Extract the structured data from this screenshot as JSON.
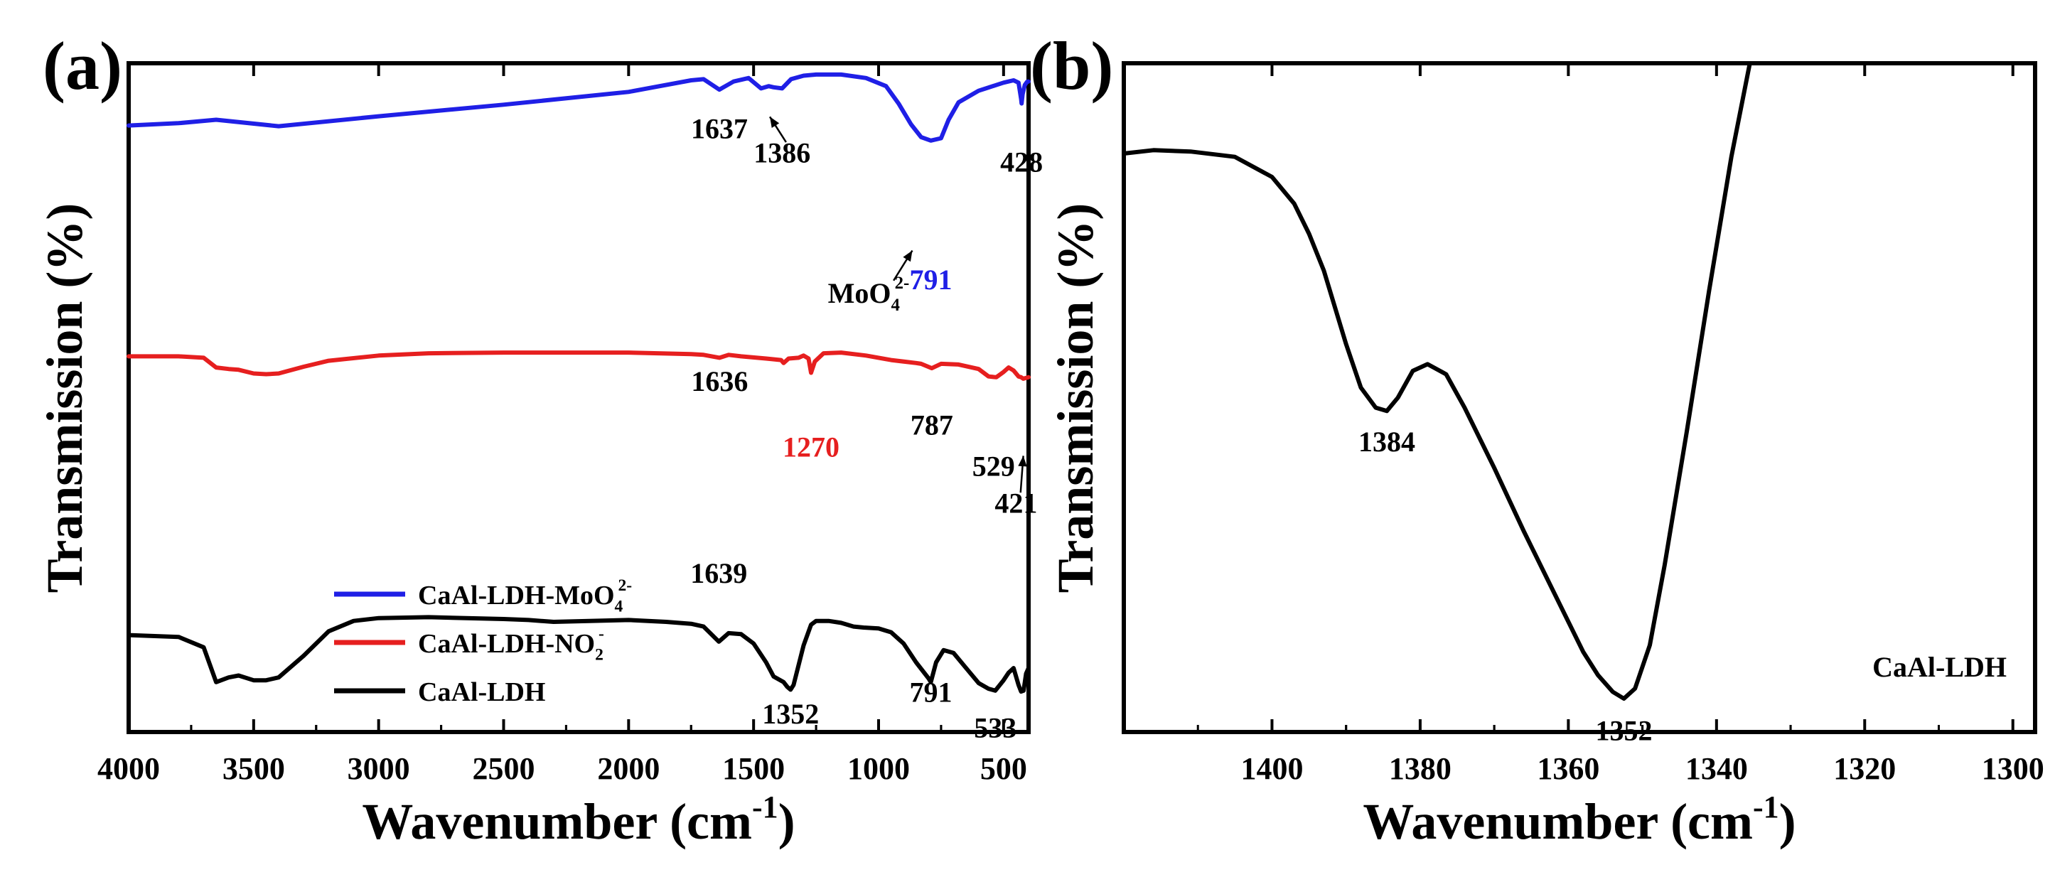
{
  "chart_data": [
    {
      "id": "a",
      "type": "line",
      "panel_label": "(a)",
      "xlabel_main": "Wavenumber (cm",
      "xlabel_sup": "-1",
      "xlabel_end": ")",
      "ylabel": "Transmission (%)",
      "xlim": [
        4000,
        400
      ],
      "x_ticks": [
        4000,
        3500,
        3000,
        2500,
        2000,
        1500,
        1000,
        500
      ],
      "x_tick_labels": [
        "4000",
        "3500",
        "3000",
        "2500",
        "2000",
        "1500",
        "1000",
        "500"
      ],
      "ylim": [
        0,
        100
      ],
      "y_ticks_shown": false,
      "legend": [
        {
          "label_main": "CaAl-LDH-MoO",
          "label_sub": "4",
          "label_sup": "2-",
          "color": "#1f1fe6"
        },
        {
          "label_main": "CaAl-LDH-NO",
          "label_sub": "2",
          "label_sup": "-",
          "color": "#e61f1f"
        },
        {
          "label_main": "CaAl-LDH",
          "label_sub": "",
          "label_sup": "",
          "color": "#000000"
        }
      ],
      "series": [
        {
          "name": "CaAl-LDH-MoO4 2-",
          "color": "#1f1fe6",
          "x": [
            4000,
            3800,
            3650,
            3400,
            3000,
            2500,
            2000,
            1750,
            1700,
            1637,
            1580,
            1520,
            1470,
            1440,
            1420,
            1386,
            1350,
            1300,
            1250,
            1150,
            1050,
            970,
            920,
            870,
            830,
            791,
            750,
            720,
            680,
            600,
            500,
            460,
            440,
            430,
            428,
            424,
            415,
            405,
            400
          ],
          "y": [
            76.5,
            77.5,
            79.0,
            76.2,
            80.5,
            85.5,
            91.0,
            96.0,
            96.5,
            92.0,
            95.5,
            97.0,
            92.5,
            93.5,
            93.0,
            92.5,
            96.5,
            98.0,
            98.5,
            98.5,
            97.0,
            93.5,
            86.0,
            77.0,
            71.5,
            70.0,
            71.0,
            79.0,
            86.5,
            91.5,
            95.0,
            96.0,
            95.0,
            88.0,
            86.0,
            90.0,
            94.0,
            95.5,
            95.5
          ]
        },
        {
          "name": "CaAl-LDH-NO2 -",
          "color": "#e61f1f",
          "x": [
            4000,
            3800,
            3700,
            3650,
            3600,
            3560,
            3500,
            3450,
            3400,
            3300,
            3200,
            3000,
            2800,
            2500,
            2000,
            1750,
            1700,
            1636,
            1600,
            1550,
            1450,
            1390,
            1380,
            1360,
            1320,
            1300,
            1280,
            1270,
            1255,
            1220,
            1150,
            1050,
            950,
            850,
            830,
            787,
            750,
            680,
            600,
            560,
            529,
            500,
            480,
            460,
            440,
            430,
            421,
            410,
            400
          ],
          "y": [
            56.5,
            56.5,
            55.5,
            49.0,
            48.0,
            47.5,
            45.0,
            44.5,
            45.0,
            49.5,
            53.5,
            57.0,
            58.5,
            59.0,
            59.0,
            58.0,
            57.5,
            55.5,
            57.5,
            56.5,
            55.0,
            54.0,
            52.0,
            55.0,
            55.5,
            57.0,
            55.0,
            45.5,
            53.0,
            58.5,
            59.0,
            57.0,
            54.0,
            52.0,
            51.5,
            48.5,
            51.5,
            51.0,
            48.0,
            43.0,
            42.5,
            46.0,
            49.0,
            47.0,
            43.0,
            42.5,
            41.5,
            42.0,
            42.5
          ]
        },
        {
          "name": "CaAl-LDH",
          "color": "#000000",
          "x": [
            4000,
            3800,
            3700,
            3650,
            3600,
            3560,
            3500,
            3450,
            3400,
            3300,
            3200,
            3100,
            3000,
            2800,
            2500,
            2400,
            2300,
            2000,
            1850,
            1750,
            1700,
            1639,
            1600,
            1550,
            1500,
            1450,
            1420,
            1380,
            1365,
            1352,
            1340,
            1300,
            1270,
            1250,
            1200,
            1150,
            1100,
            1060,
            1000,
            950,
            900,
            850,
            800,
            791,
            770,
            740,
            700,
            650,
            600,
            560,
            533,
            500,
            480,
            460,
            440,
            430,
            420,
            410,
            400
          ],
          "y": [
            34.5,
            33.5,
            28.0,
            9.5,
            12.0,
            13.0,
            10.5,
            10.5,
            12.0,
            23.5,
            36.5,
            42.0,
            43.5,
            44.0,
            43.0,
            42.5,
            41.5,
            42.5,
            41.5,
            40.5,
            39.0,
            31.0,
            35.5,
            35.0,
            30.0,
            20.0,
            12.5,
            9.5,
            7.0,
            5.5,
            8.0,
            29.0,
            40.0,
            42.0,
            42.0,
            41.0,
            39.0,
            38.5,
            38.0,
            36.0,
            30.0,
            20.0,
            11.5,
            9.5,
            20.0,
            26.5,
            25.0,
            17.0,
            9.0,
            6.0,
            5.0,
            10.5,
            14.5,
            17.0,
            8.0,
            4.5,
            5.0,
            14.0,
            17.0
          ]
        }
      ],
      "annotations": [
        {
          "text": "1637",
          "x": 1637,
          "y": 88.8,
          "color": "#000000"
        },
        {
          "text": "1386",
          "x": 1386,
          "y": 85.2,
          "color": "#000000"
        },
        {
          "text": "428",
          "x": 428,
          "y": 83.8,
          "color": "#000000"
        },
        {
          "text": "791",
          "x": 791,
          "y": 66.2,
          "color": "#1f1fe6"
        },
        {
          "text": "MoO",
          "sub": "4",
          "sup": "2-",
          "x": 1040,
          "y": 64.2,
          "color": "#000000"
        },
        {
          "text": "1636",
          "x": 1636,
          "y": 51.0,
          "color": "#000000"
        },
        {
          "text": "1270",
          "x": 1270,
          "y": 41.2,
          "color": "#e61f1f"
        },
        {
          "text": "787",
          "x": 787,
          "y": 44.5,
          "color": "#000000"
        },
        {
          "text": "529",
          "x": 540,
          "y": 38.3,
          "color": "#000000"
        },
        {
          "text": "421",
          "x": 450,
          "y": 32.8,
          "color": "#000000"
        },
        {
          "text": "1639",
          "x": 1639,
          "y": 22.3,
          "color": "#000000"
        },
        {
          "text": "1352",
          "x": 1352,
          "y": 1.3,
          "color": "#000000"
        },
        {
          "text": "791",
          "x": 791,
          "y": 4.5,
          "color": "#000000"
        },
        {
          "text": "533",
          "x": 533,
          "y": -0.8,
          "color": "#000000"
        }
      ],
      "arrows": [
        {
          "from": [
            1370,
            88.2
          ],
          "to": [
            1435,
            92.0
          ]
        },
        {
          "from": [
            940,
            67.5
          ],
          "to": [
            865,
            72.0
          ]
        },
        {
          "from": [
            432,
            35.8
          ],
          "to": [
            421,
            41.3
          ]
        }
      ]
    },
    {
      "id": "b",
      "type": "line",
      "panel_label": "(b)",
      "xlabel_main": "Wavenumber (cm",
      "xlabel_sup": "-1",
      "xlabel_end": ")",
      "ylabel": "Transmission (%)",
      "xlim": [
        1420,
        1297
      ],
      "x_ticks": [
        1400,
        1380,
        1360,
        1340,
        1320,
        1300
      ],
      "x_tick_labels": [
        "1400",
        "1380",
        "1360",
        "1340",
        "1320",
        "1300"
      ],
      "ylim": [
        0,
        100
      ],
      "y_ticks_shown": false,
      "inside_label": "CaAl-LDH",
      "series": [
        {
          "name": "CaAl-LDH",
          "color": "#000000",
          "x": [
            1420,
            1416,
            1411,
            1405,
            1400,
            1397,
            1395,
            1393,
            1390,
            1388,
            1386,
            1384.5,
            1383,
            1381,
            1379,
            1376.5,
            1374,
            1370,
            1366,
            1362,
            1358,
            1356,
            1354,
            1352.5,
            1351,
            1349,
            1347,
            1344,
            1341,
            1338,
            1335.5
          ],
          "y": [
            86.5,
            87.0,
            86.8,
            86.0,
            83.0,
            79.0,
            74.5,
            69.0,
            58.0,
            51.5,
            48.5,
            48.0,
            50.0,
            54.0,
            55.0,
            53.5,
            48.5,
            39.5,
            30.0,
            21.0,
            12.0,
            8.5,
            6.0,
            5.0,
            6.5,
            13.0,
            25.0,
            45.0,
            66.0,
            86.0,
            100.0
          ]
        }
      ],
      "annotations": [
        {
          "text": "1384",
          "x": 1384.5,
          "y": 42.0,
          "color": "#000000"
        },
        {
          "text": "1352",
          "x": 1352.5,
          "y": -1.2,
          "color": "#000000"
        }
      ]
    }
  ]
}
